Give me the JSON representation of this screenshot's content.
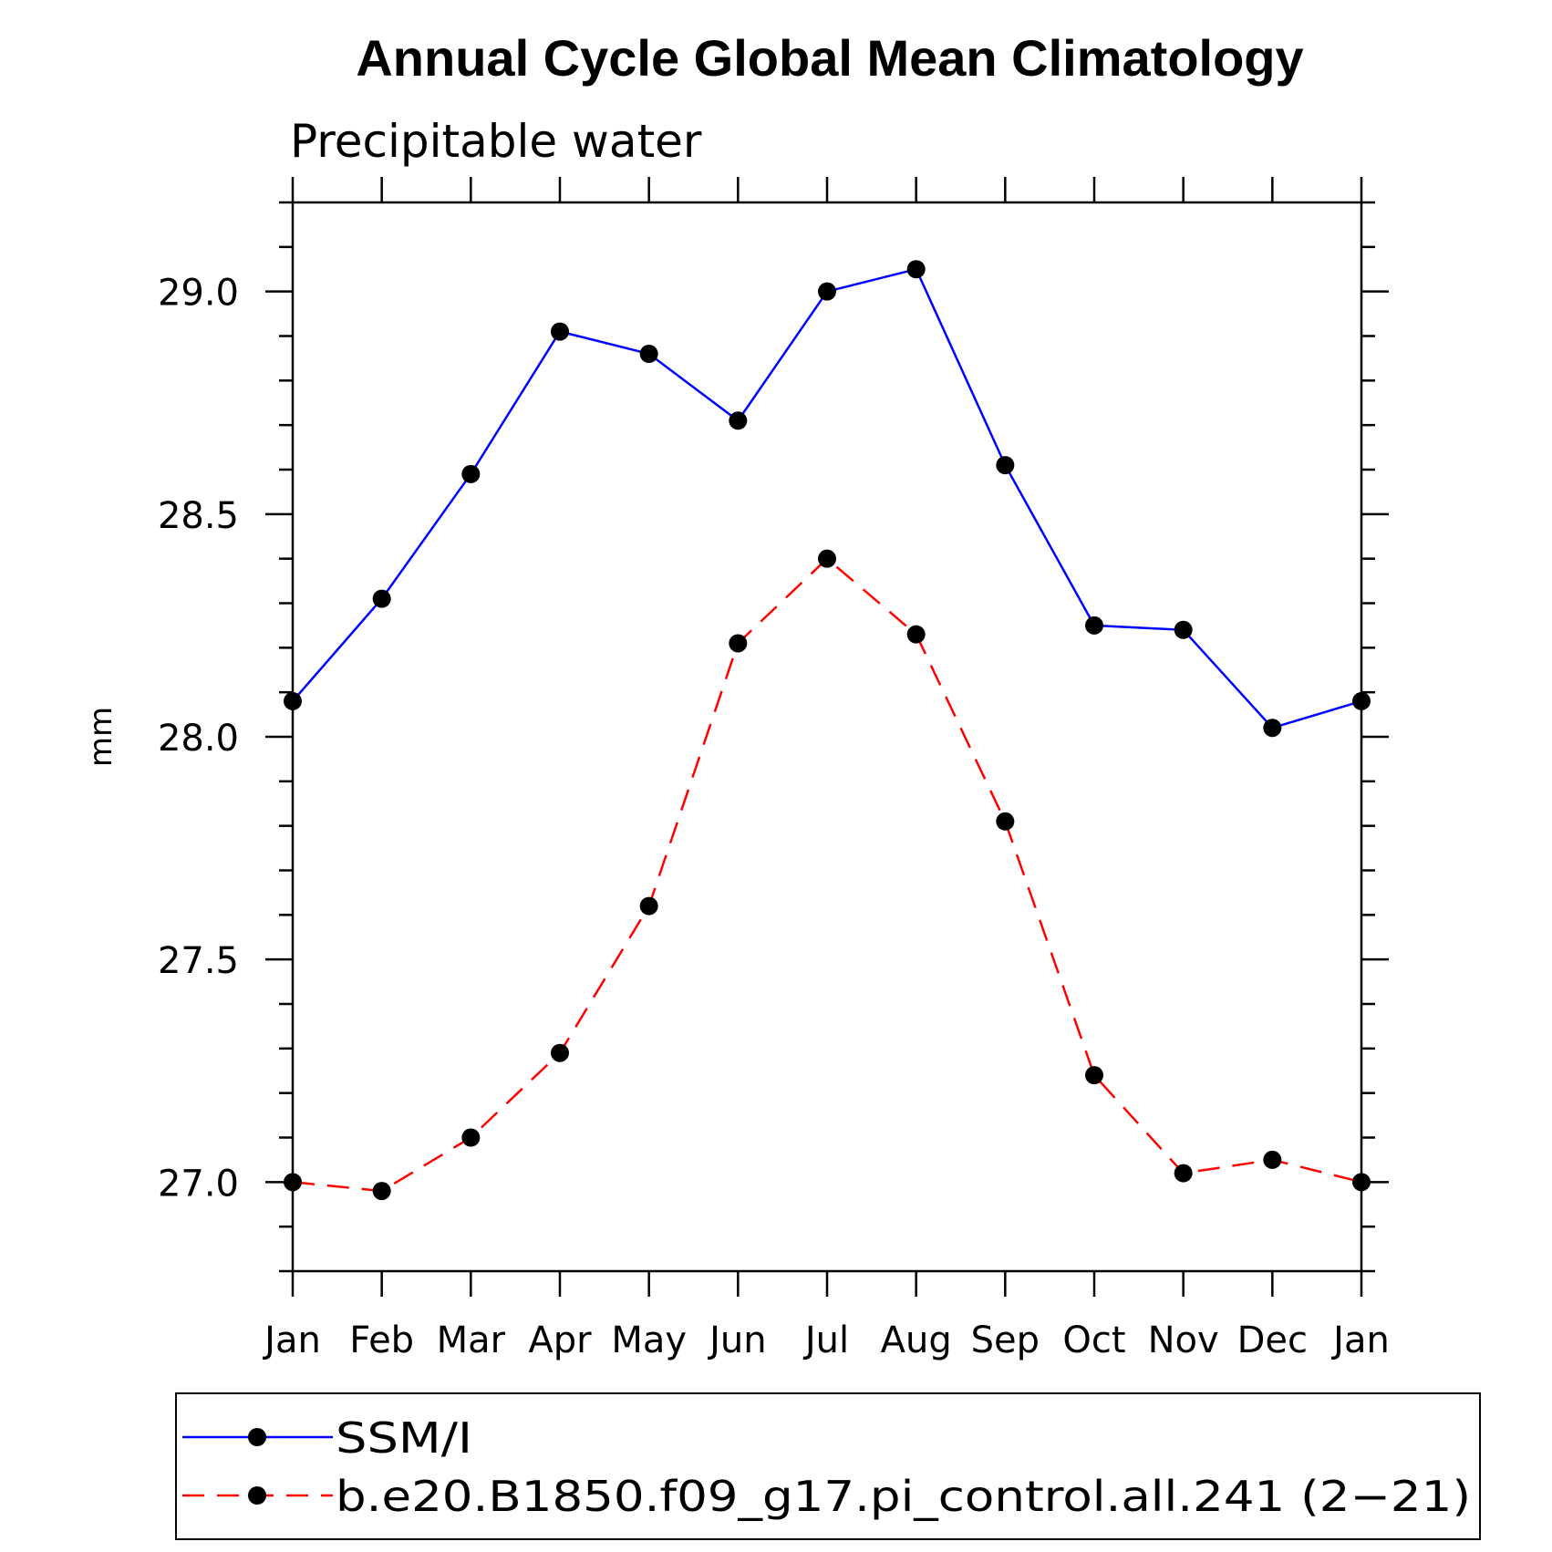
{
  "chart_data": {
    "type": "line",
    "title": "Annual Cycle Global Mean Climatology",
    "subtitle": "Precipitable water",
    "xlabel": "",
    "ylabel": "mm",
    "categories": [
      "Jan",
      "Feb",
      "Mar",
      "Apr",
      "May",
      "Jun",
      "Jul",
      "Aug",
      "Sep",
      "Oct",
      "Nov",
      "Dec",
      "Jan"
    ],
    "ylim": [
      26.8,
      29.2
    ],
    "yticks": [
      "27.0",
      "27.5",
      "28.0",
      "28.5",
      "29.0"
    ],
    "grid": false,
    "legend_position": "bottom",
    "series": [
      {
        "name": "SSM/I",
        "color": "#0000ff",
        "style": "solid",
        "marker": "dot",
        "values": [
          28.08,
          28.31,
          28.59,
          28.91,
          28.86,
          28.71,
          29.0,
          29.05,
          28.61,
          28.25,
          28.24,
          28.02,
          28.08
        ]
      },
      {
        "name": "b.e20.B1850.f09_g17.pi_control.all.241 (2−21)",
        "color": "#ff0000",
        "style": "dashed",
        "marker": "dot",
        "values": [
          27.0,
          26.98,
          27.1,
          27.29,
          27.62,
          28.21,
          28.4,
          28.23,
          27.81,
          27.24,
          27.02,
          27.05,
          27.0
        ]
      }
    ]
  }
}
